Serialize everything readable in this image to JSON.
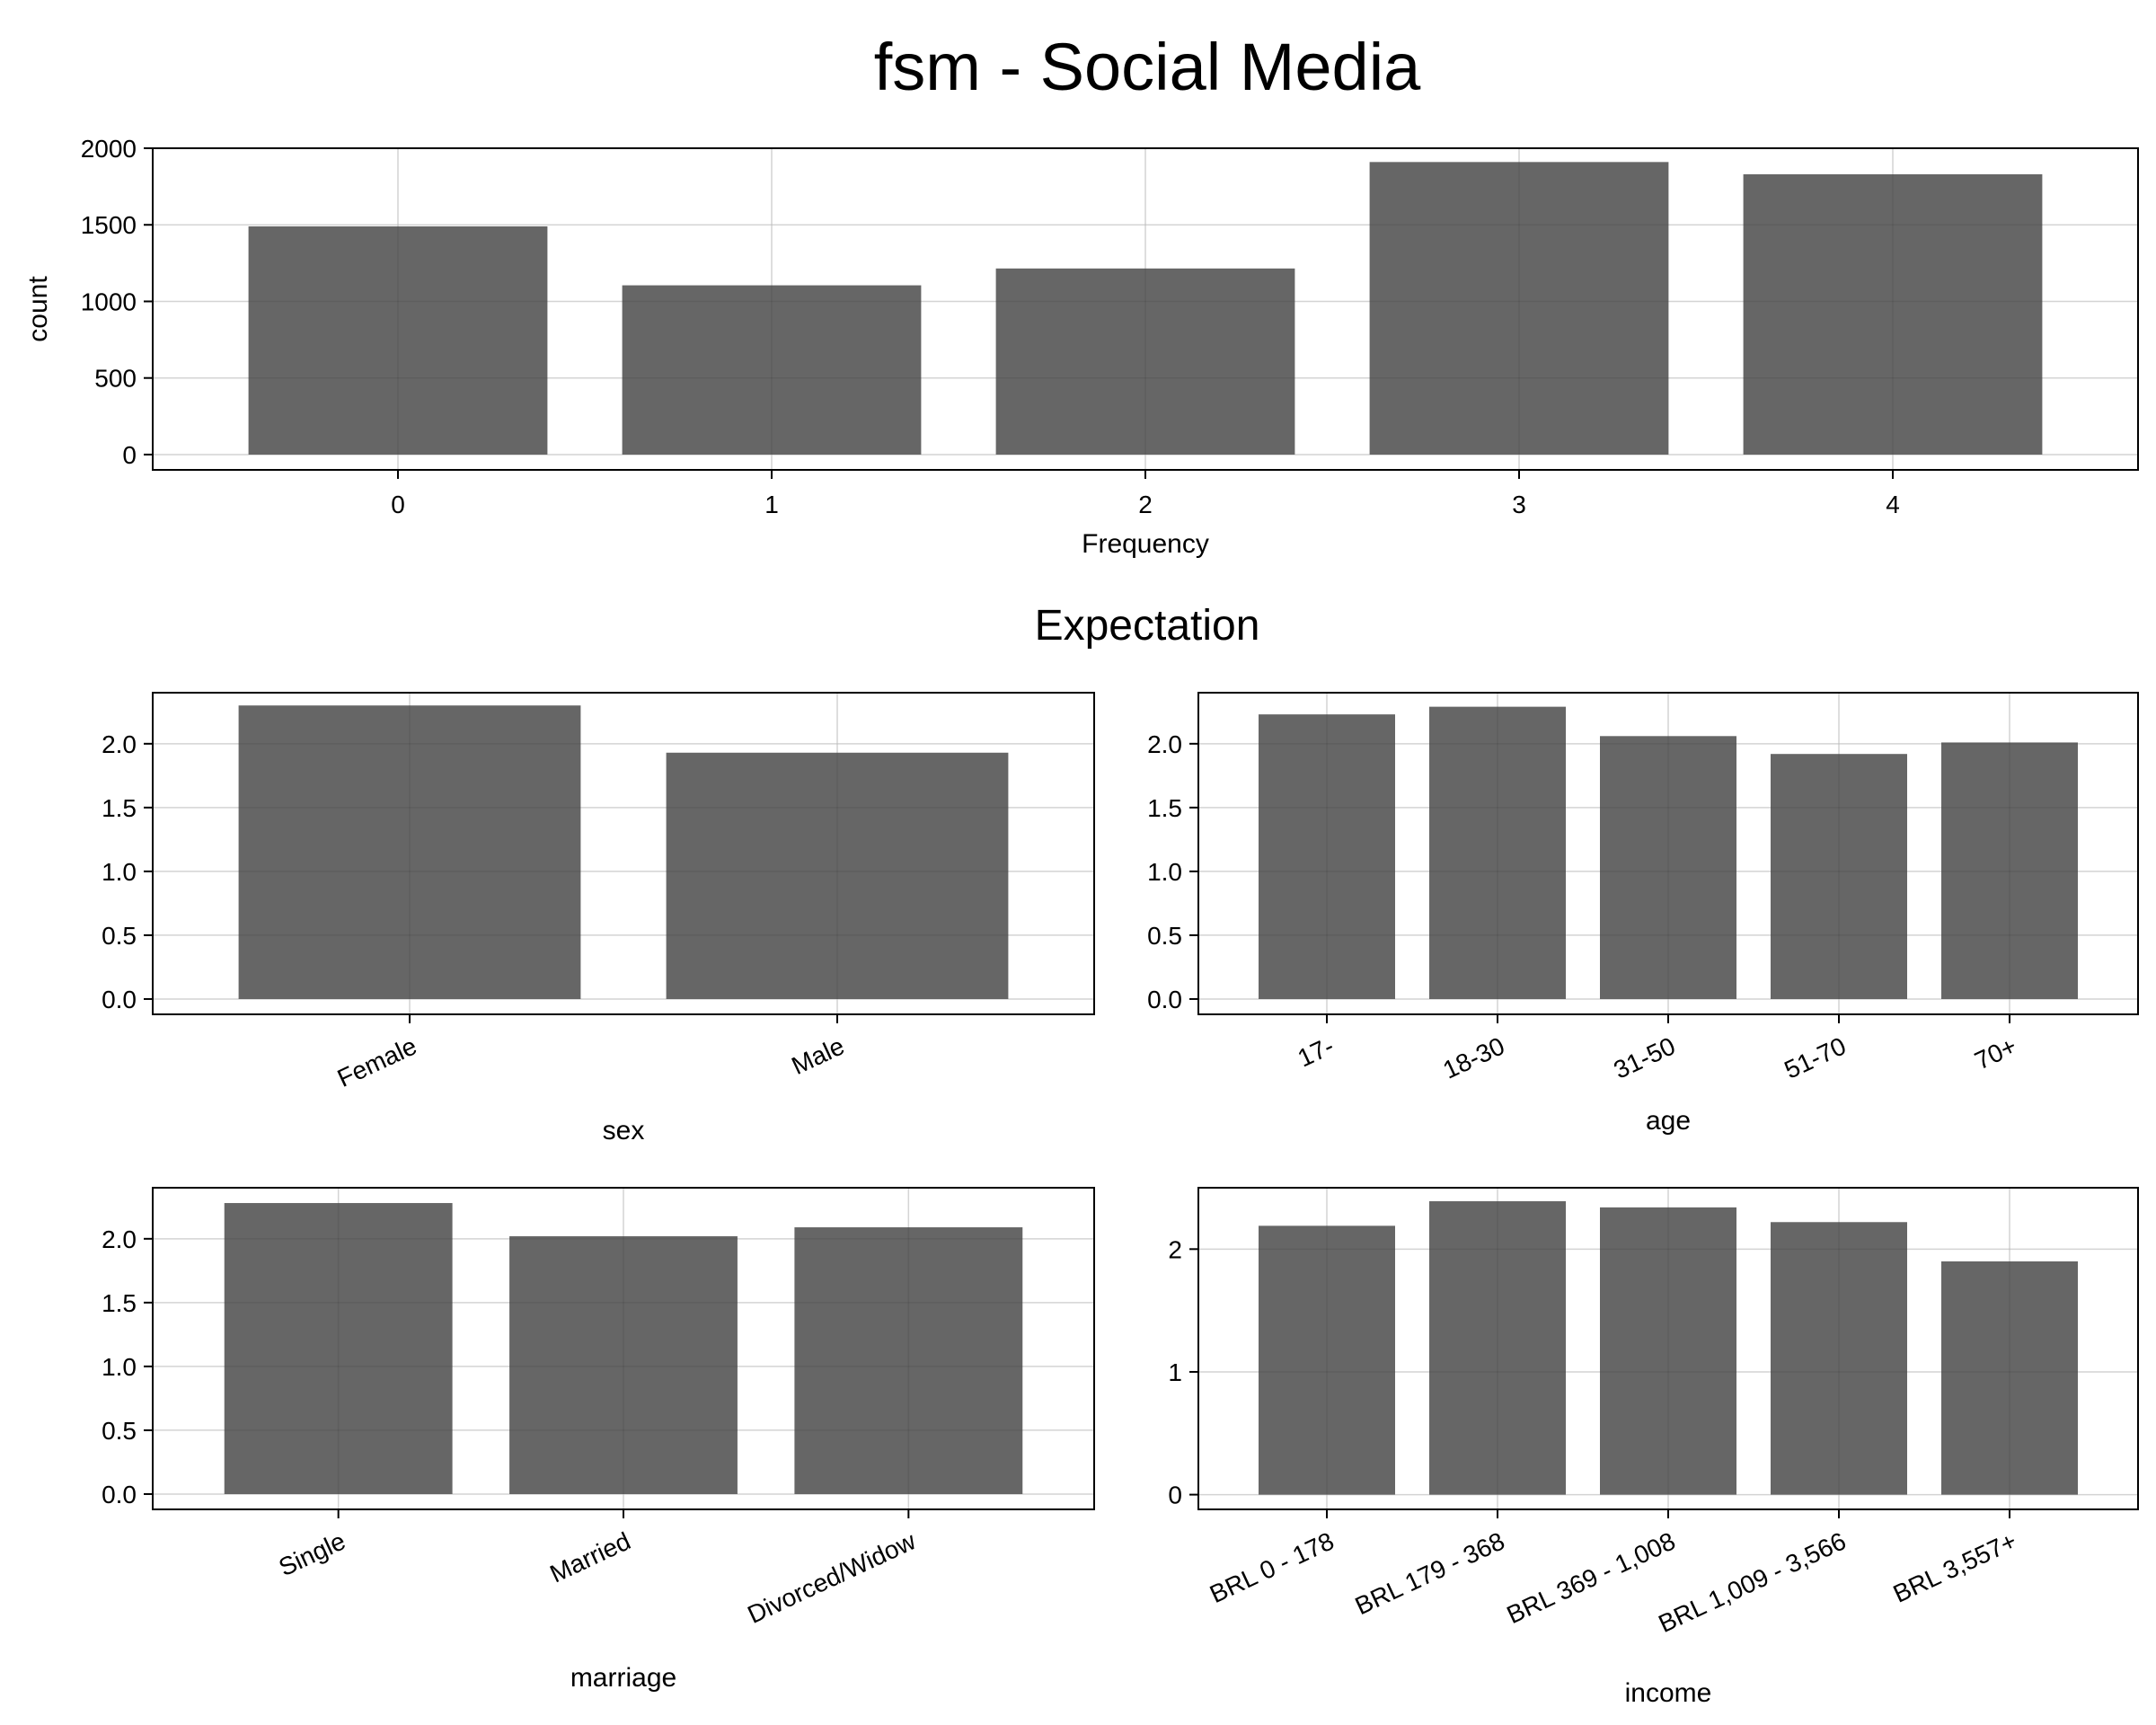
{
  "title": "fsm - Social Media",
  "subtitle": "Expectation",
  "chart_data": [
    {
      "id": "frequency",
      "type": "bar",
      "categories": [
        "0",
        "1",
        "2",
        "3",
        "4"
      ],
      "values": [
        1490,
        1105,
        1215,
        1910,
        1830
      ],
      "xlabel": "Frequency",
      "ylabel": "count",
      "ylim": [
        -100,
        2000
      ],
      "yticks": [
        0,
        500,
        1000,
        1500,
        2000
      ],
      "ytick_labels": [
        "0",
        "500",
        "1000",
        "1500",
        "2000"
      ],
      "grid": true,
      "rotate_xticks": false,
      "bar_color": "#666666"
    },
    {
      "id": "sex",
      "type": "bar",
      "categories": [
        "Female",
        "Male"
      ],
      "values": [
        2.3,
        1.93
      ],
      "xlabel": "sex",
      "ylabel": "",
      "ylim": [
        -0.12,
        2.4
      ],
      "yticks": [
        0,
        0.5,
        1,
        1.5,
        2
      ],
      "ytick_labels": [
        "0.0",
        "0.5",
        "1.0",
        "1.5",
        "2.0"
      ],
      "grid": true,
      "rotate_xticks": true,
      "bar_color": "#666666"
    },
    {
      "id": "age",
      "type": "bar",
      "categories": [
        "17-",
        "18-30",
        "31-50",
        "51-70",
        "70+"
      ],
      "values": [
        2.23,
        2.29,
        2.06,
        1.92,
        2.01
      ],
      "xlabel": "age",
      "ylabel": "",
      "ylim": [
        -0.12,
        2.4
      ],
      "yticks": [
        0,
        0.5,
        1,
        1.5,
        2
      ],
      "ytick_labels": [
        "0.0",
        "0.5",
        "1.0",
        "1.5",
        "2.0"
      ],
      "grid": true,
      "rotate_xticks": true,
      "bar_color": "#666666"
    },
    {
      "id": "marriage",
      "type": "bar",
      "categories": [
        "Single",
        "Married",
        "Divorced/Widow"
      ],
      "values": [
        2.28,
        2.02,
        2.09
      ],
      "xlabel": "marriage",
      "ylabel": "",
      "ylim": [
        -0.12,
        2.4
      ],
      "yticks": [
        0,
        0.5,
        1,
        1.5,
        2
      ],
      "ytick_labels": [
        "0.0",
        "0.5",
        "1.0",
        "1.5",
        "2.0"
      ],
      "grid": true,
      "rotate_xticks": true,
      "bar_color": "#666666"
    },
    {
      "id": "income",
      "type": "bar",
      "categories": [
        "BRL 0 - 178",
        "BRL 179 - 368",
        "BRL 369 - 1,008",
        "BRL 1,009 - 3,566",
        "BRL 3,557+"
      ],
      "values": [
        2.19,
        2.39,
        2.34,
        2.22,
        1.9
      ],
      "xlabel": "income",
      "ylabel": "",
      "ylim": [
        -0.12,
        2.5
      ],
      "yticks": [
        0,
        1,
        2
      ],
      "ytick_labels": [
        "0",
        "1",
        "2"
      ],
      "grid": true,
      "rotate_xticks": true,
      "bar_color": "#666666"
    }
  ]
}
